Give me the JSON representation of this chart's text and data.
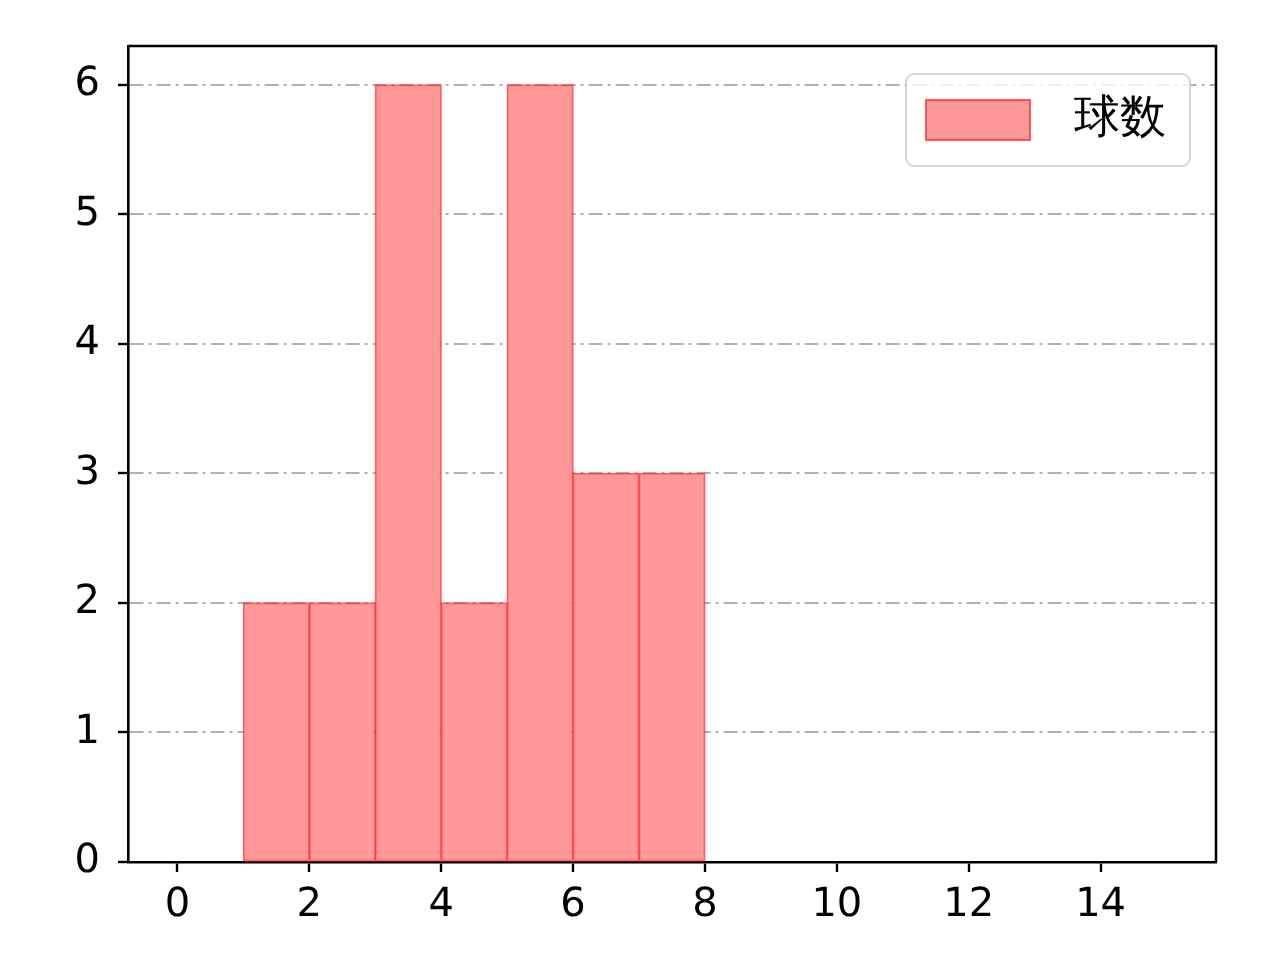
{
  "chart_data": {
    "type": "histogram",
    "bins": [
      1,
      2,
      3,
      4,
      5,
      6,
      7,
      8
    ],
    "series": [
      {
        "name": "球数",
        "color": "#ff9999",
        "values": [
          2,
          2,
          6,
          2,
          6,
          3,
          3
        ]
      }
    ],
    "xlim": [
      -0.75,
      15.75
    ],
    "xticks": [
      0,
      2,
      4,
      6,
      8,
      10,
      12,
      14
    ],
    "ylim": [
      0,
      6.3
    ],
    "yticks": [
      0,
      1,
      2,
      3,
      4,
      5,
      6
    ],
    "grid": "y",
    "legend": "top right"
  }
}
